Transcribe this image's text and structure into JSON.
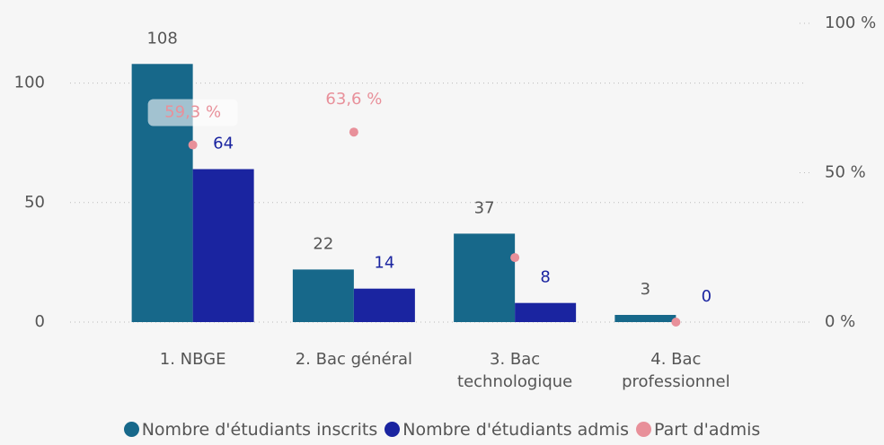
{
  "chart_data": {
    "type": "bar",
    "categories": [
      "1. NBGE",
      "2. Bac général",
      "3. Bac technologique",
      "4. Bac professionnel"
    ],
    "series": [
      {
        "name": "Nombre d'étudiants inscrits",
        "color": "#17688a",
        "values": [
          108,
          22,
          37,
          3
        ]
      },
      {
        "name": "Nombre d'étudiants admis",
        "color": "#1a24a0",
        "values": [
          64,
          14,
          8,
          0
        ]
      },
      {
        "name": "Part d'admis",
        "color": "#e8909a",
        "axis": "y2",
        "type": "scatter",
        "values": [
          59.3,
          63.6,
          21.6,
          0
        ],
        "value_labels": [
          "59,3 %",
          "63,6 %",
          null,
          null
        ]
      }
    ],
    "ylim": [
      0,
      125
    ],
    "yticks": [
      0,
      50,
      100
    ],
    "y2lim": [
      0,
      100
    ],
    "y2ticks": [
      {
        "value": 0,
        "label": "0 %"
      },
      {
        "value": 50,
        "label": "50 %"
      },
      {
        "value": 100,
        "label": "100 %"
      }
    ],
    "grid": true,
    "legend": "bottom"
  }
}
